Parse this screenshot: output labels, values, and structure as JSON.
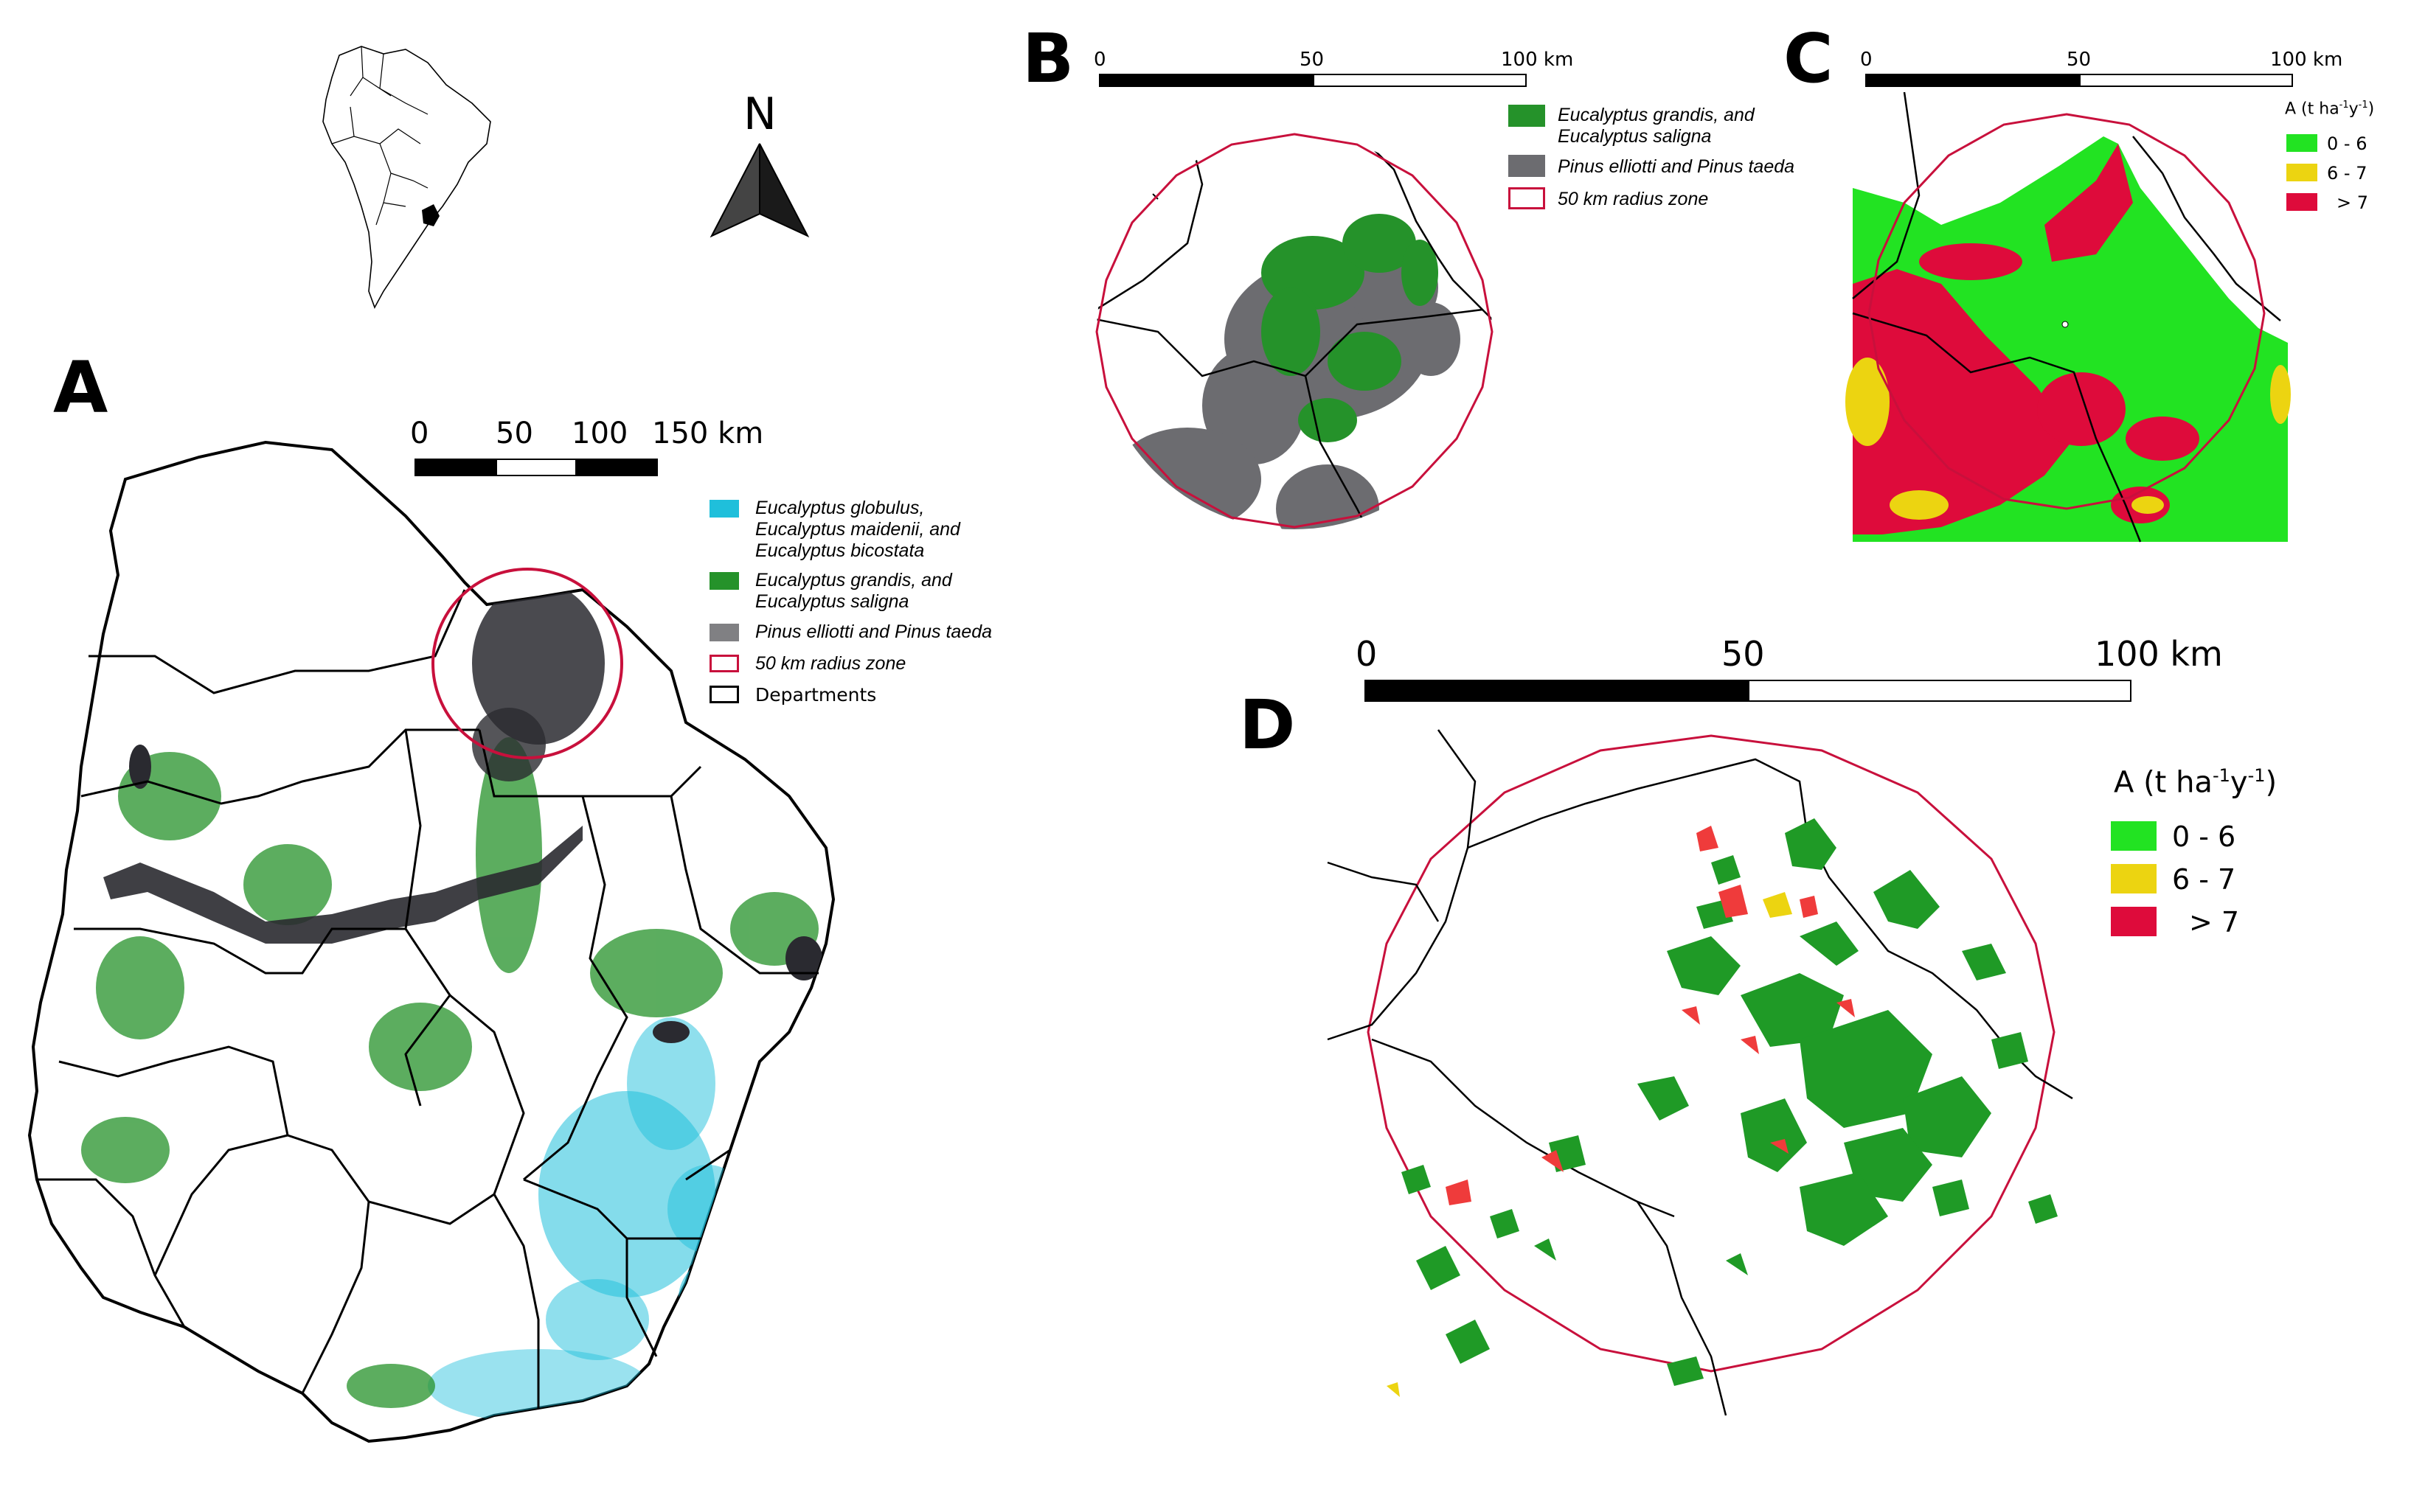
{
  "north_arrow": {
    "label": "N"
  },
  "panels": {
    "A": {
      "letter": "A",
      "scale_labels": [
        "0",
        "50",
        "100",
        "150 km"
      ],
      "legend": [
        {
          "label": "Eucalyptus globulus,\nEucalyptus maidenii, and\nEucalyptus bicostata",
          "color": "#1fbfdb",
          "style": "fill"
        },
        {
          "label": "Eucalyptus grandis, and\nEucalyptus saligna",
          "color": "#25922a",
          "style": "fill"
        },
        {
          "label": "Pinus elliotti and Pinus taeda",
          "color": "#808083",
          "style": "fill"
        },
        {
          "label": "50 km radius zone",
          "color": "#c8103c",
          "style": "outline"
        },
        {
          "label": "Departments",
          "color": "#000000",
          "style": "outline"
        }
      ]
    },
    "B": {
      "letter": "B",
      "scale_labels": [
        "0",
        "50",
        "100 km"
      ],
      "legend": [
        {
          "label": "Eucalyptus grandis, and\nEucalyptus saligna",
          "color": "#25922a",
          "style": "fill"
        },
        {
          "label": "Pinus elliotti and Pinus taeda",
          "color": "#6c6c70",
          "style": "fill"
        },
        {
          "label": "50 km radius zone",
          "color": "#c8103c",
          "style": "outline"
        }
      ]
    },
    "C": {
      "letter": "C",
      "scale_labels": [
        "0",
        "50",
        "100 km"
      ],
      "legend_title": "A (t  ha",
      "legend_title_sup1": "-1",
      "legend_title_mid": "y",
      "legend_title_sup2": "-1",
      "legend_title_end": ")",
      "classes": [
        {
          "label": "0 - 6",
          "color": "#22e322"
        },
        {
          "label": "6 - 7",
          "color": "#ecd411"
        },
        {
          "label": "> 7",
          "color": "#de0b3b"
        }
      ]
    },
    "D": {
      "letter": "D",
      "scale_labels": [
        "0",
        "50",
        "100 km"
      ],
      "legend_title": "A (t  ha",
      "legend_title_sup1": "-1",
      "legend_title_mid": "y",
      "legend_title_sup2": "-1",
      "legend_title_end": ")",
      "classes": [
        {
          "label": "0 - 6",
          "color": "#22e322"
        },
        {
          "label": "6 - 7",
          "color": "#ecd411"
        },
        {
          "label": "> 7",
          "color": "#de0b3b"
        }
      ]
    }
  },
  "colors": {
    "eucalyptus_globulus": "#1fbfdb",
    "eucalyptus_grandis": "#25922a",
    "pinus": "#6c6c70",
    "radius_zone": "#c8103c",
    "class_low": "#22e322",
    "class_mid": "#ecd411",
    "class_high": "#de0b3b",
    "plantation_dark_green": "#1f9a26",
    "plantation_red": "#ef3b3b"
  }
}
